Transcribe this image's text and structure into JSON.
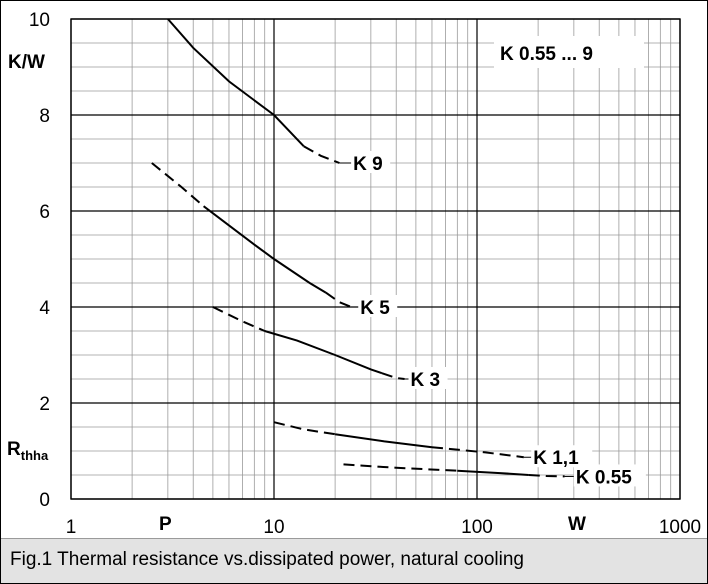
{
  "chart_data": {
    "type": "line",
    "title": "K 0.55 ... 9",
    "ylabel_unit": "K/W",
    "ylabel_symbol": "R",
    "ylabel_subscript": "thha",
    "xlabel_symbol": "P",
    "xlabel_unit": "W",
    "xscale": "log",
    "xlim": [
      1,
      1000
    ],
    "ylim": [
      0,
      10
    ],
    "x_ticks": [
      "1",
      "10",
      "100",
      "1000"
    ],
    "y_ticks": [
      "0",
      "2",
      "4",
      "6",
      "8",
      "10"
    ],
    "grid": true,
    "series": [
      {
        "name": "K 9",
        "solid": [
          [
            3,
            10
          ],
          [
            4,
            9.4
          ],
          [
            6,
            8.7
          ],
          [
            10,
            8.0
          ],
          [
            14,
            7.35
          ]
        ],
        "dashed": [
          [
            14,
            7.35
          ],
          [
            17,
            7.15
          ],
          [
            21,
            7.0
          ]
        ],
        "leader_to": [
          24,
          7.0
        ]
      },
      {
        "name": "K 5",
        "dashed_start": [
          [
            2.5,
            7.0
          ],
          [
            3.5,
            6.5
          ],
          [
            4.5,
            6.1
          ]
        ],
        "solid": [
          [
            4.5,
            6.1
          ],
          [
            6,
            5.7
          ],
          [
            8,
            5.3
          ],
          [
            10,
            5.0
          ],
          [
            15,
            4.5
          ],
          [
            18,
            4.3
          ]
        ],
        "dashed": [
          [
            18,
            4.3
          ],
          [
            21,
            4.1
          ],
          [
            24,
            4.0
          ]
        ],
        "leader_to": [
          26,
          4.0
        ]
      },
      {
        "name": "K 3",
        "dashed_start": [
          [
            5,
            4.0
          ],
          [
            7,
            3.7
          ],
          [
            9,
            3.5
          ]
        ],
        "solid": [
          [
            9,
            3.5
          ],
          [
            13,
            3.3
          ],
          [
            20,
            3.0
          ],
          [
            30,
            2.7
          ],
          [
            34,
            2.62
          ]
        ],
        "dashed": [
          [
            34,
            2.62
          ],
          [
            40,
            2.52
          ],
          [
            44,
            2.5
          ]
        ],
        "leader_to": [
          46,
          2.5
        ]
      },
      {
        "name": "K 1,1",
        "dashed_start": [
          [
            10,
            1.6
          ],
          [
            14,
            1.45
          ],
          [
            20,
            1.35
          ]
        ],
        "solid": [
          [
            20,
            1.35
          ],
          [
            35,
            1.2
          ],
          [
            60,
            1.08
          ]
        ],
        "dashed": [
          [
            60,
            1.08
          ],
          [
            110,
            0.97
          ],
          [
            170,
            0.87
          ]
        ],
        "leader_to": [
          185,
          0.87
        ]
      },
      {
        "name": "K 0.55",
        "dashed_start": [
          [
            22,
            0.72
          ],
          [
            40,
            0.65
          ],
          [
            80,
            0.59
          ]
        ],
        "solid": [
          [
            80,
            0.59
          ],
          [
            130,
            0.54
          ],
          [
            180,
            0.5
          ]
        ],
        "dashed": [
          [
            180,
            0.5
          ],
          [
            220,
            0.48
          ],
          [
            270,
            0.47
          ]
        ],
        "leader_to": [
          300,
          0.47
        ]
      }
    ]
  },
  "caption": "Fig.1 Thermal resistance vs.dissipated power, natural cooling"
}
